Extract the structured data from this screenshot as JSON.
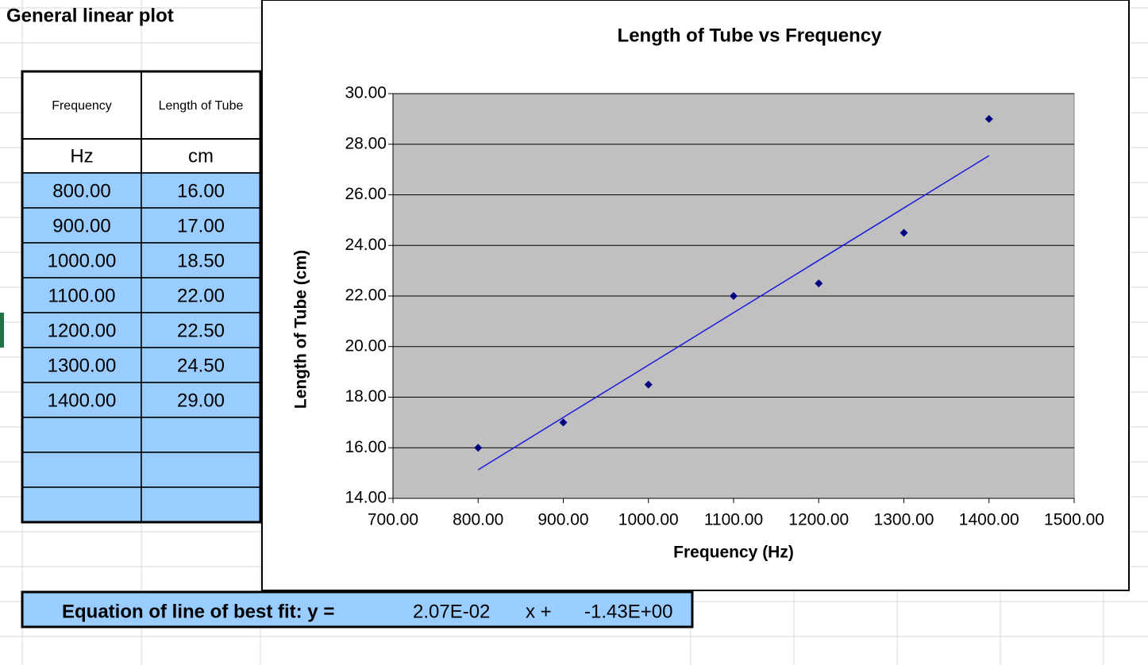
{
  "header": {
    "title": "General linear plot"
  },
  "table": {
    "columns": [
      "Frequency",
      "Length of Tube"
    ],
    "units": [
      "Hz",
      "cm"
    ],
    "rows": [
      [
        "800.00",
        "16.00"
      ],
      [
        "900.00",
        "17.00"
      ],
      [
        "1000.00",
        "18.50"
      ],
      [
        "1100.00",
        "22.00"
      ],
      [
        "1200.00",
        "22.50"
      ],
      [
        "1300.00",
        "24.50"
      ],
      [
        "1400.00",
        "29.00"
      ]
    ]
  },
  "chart_data": {
    "type": "scatter",
    "title": "Length of Tube vs Frequency",
    "x_label": "Frequency  (Hz)",
    "y_label": "Length of Tube (cm)",
    "x": [
      800,
      900,
      1000,
      1100,
      1200,
      1300,
      1400
    ],
    "series": [
      {
        "name": "Length of Tube",
        "color": "#000080",
        "values": [
          16,
          17,
          18.5,
          22,
          22.5,
          24.5,
          29
        ]
      }
    ],
    "trendline_color": "#1a1adb",
    "xlim": [
      700,
      1500
    ],
    "xticks": [
      {
        "value": 700,
        "label": "700.00"
      },
      {
        "value": 800,
        "label": "800.00"
      },
      {
        "value": 900,
        "label": "900.00"
      },
      {
        "value": 1000,
        "label": "1000.00"
      },
      {
        "value": 1100,
        "label": "1100.00"
      },
      {
        "value": 1200,
        "label": "1200.00"
      },
      {
        "value": 1300,
        "label": "1300.00"
      },
      {
        "value": 1400,
        "label": "1400.00"
      },
      {
        "value": 1500,
        "label": "1500.00"
      }
    ],
    "ylim": [
      14,
      30
    ],
    "yticks": [
      {
        "value": 14,
        "label": "14.00"
      },
      {
        "value": 16,
        "label": "16.00"
      },
      {
        "value": 18,
        "label": "18.00"
      },
      {
        "value": 20,
        "label": "20.00"
      },
      {
        "value": 22,
        "label": "22.00"
      },
      {
        "value": 24,
        "label": "24.00"
      },
      {
        "value": 26,
        "label": "26.00"
      },
      {
        "value": 28,
        "label": "28.00"
      },
      {
        "value": 30,
        "label": "30.00"
      }
    ],
    "grid": true,
    "plot_background": "#c0c0c0"
  },
  "equation": {
    "prefix": "Equation of line of best fit:  y =",
    "slope": {
      "value": 0.0207,
      "label": "2.07E-02"
    },
    "middle": "x +",
    "intercept": {
      "value": -1.43,
      "label": "-1.43E+00"
    }
  }
}
